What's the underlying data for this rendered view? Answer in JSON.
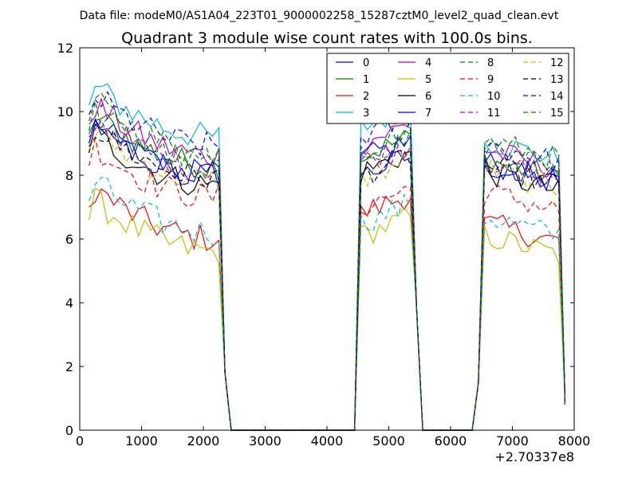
{
  "chart_data": {
    "type": "line",
    "suptitle": "Data file: modeM0/AS1A04_223T01_9000002258_15287cztM0_level2_quad_clean.evt",
    "title": "Quadrant 3 module wise count rates with 100.0s bins.",
    "xlabel": "",
    "ylabel": "",
    "xlim": [
      0,
      8000
    ],
    "ylim": [
      0,
      12
    ],
    "x_offset_label": "+2.70337e8",
    "x_ticks": [
      0,
      1000,
      2000,
      3000,
      4000,
      5000,
      6000,
      7000,
      8000
    ],
    "x_tick_labels": [
      "0",
      "1000",
      "2000",
      "3000",
      "4000",
      "5000",
      "6000",
      "7000",
      "8000"
    ],
    "y_ticks": [
      0,
      2,
      4,
      6,
      8,
      10,
      12
    ],
    "y_tick_labels": [
      "0",
      "2",
      "4",
      "6",
      "8",
      "10",
      "12"
    ],
    "segments": [
      {
        "start": 250,
        "end": 2250,
        "step": 100,
        "drop_to": 2450
      },
      {
        "start": 4550,
        "end": 5350,
        "step": 100,
        "drop_to": 5550
      },
      {
        "start": 6550,
        "end": 7750,
        "step": 100,
        "drop_to": 7850
      }
    ],
    "series": [
      {
        "name": "0",
        "color": "#0000ff",
        "style": "solid",
        "seg_levels": [
          8.0,
          8.0,
          7.7
        ]
      },
      {
        "name": "1",
        "color": "#008000",
        "style": "solid",
        "seg_levels": [
          8.3,
          8.6,
          7.9
        ]
      },
      {
        "name": "2",
        "color": "#ff0000",
        "style": "solid",
        "seg_levels": [
          6.0,
          6.8,
          5.9
        ]
      },
      {
        "name": "3",
        "color": "#00bfbf",
        "style": "solid",
        "seg_levels": [
          9.2,
          9.5,
          8.5
        ]
      },
      {
        "name": "4",
        "color": "#bf00bf",
        "style": "solid",
        "seg_levels": [
          8.6,
          9.0,
          8.2
        ]
      },
      {
        "name": "5",
        "color": "#bfbf00",
        "style": "solid",
        "seg_levels": [
          5.6,
          6.1,
          5.5
        ]
      },
      {
        "name": "6",
        "color": "#000000",
        "style": "solid",
        "seg_levels": [
          7.7,
          8.1,
          7.5
        ]
      },
      {
        "name": "7",
        "color": "#0000ff",
        "style": "solid",
        "seg_levels": [
          8.0,
          8.5,
          7.8
        ]
      },
      {
        "name": "8",
        "color": "#008000",
        "style": "dashed",
        "seg_levels": [
          8.7,
          8.8,
          8.3
        ]
      },
      {
        "name": "9",
        "color": "#ff0000",
        "style": "dashed",
        "seg_levels": [
          7.3,
          7.0,
          6.9
        ]
      },
      {
        "name": "10",
        "color": "#00bfbf",
        "style": "dashed",
        "seg_levels": [
          6.2,
          6.5,
          6.1
        ]
      },
      {
        "name": "11",
        "color": "#bf00bf",
        "style": "dashed",
        "seg_levels": [
          8.2,
          8.4,
          7.9
        ]
      },
      {
        "name": "12",
        "color": "#bfbf00",
        "style": "dashed",
        "seg_levels": [
          7.8,
          7.9,
          7.6
        ]
      },
      {
        "name": "13",
        "color": "#000000",
        "style": "dashed",
        "seg_levels": [
          7.9,
          8.0,
          7.7
        ]
      },
      {
        "name": "14",
        "color": "#0000ff",
        "style": "dashed",
        "seg_levels": [
          8.9,
          9.2,
          8.4
        ]
      },
      {
        "name": "15",
        "color": "#008000",
        "style": "dashed",
        "seg_levels": [
          8.4,
          8.6,
          8.5
        ]
      }
    ],
    "legend": {
      "position": "top-right",
      "columns": 4
    }
  }
}
